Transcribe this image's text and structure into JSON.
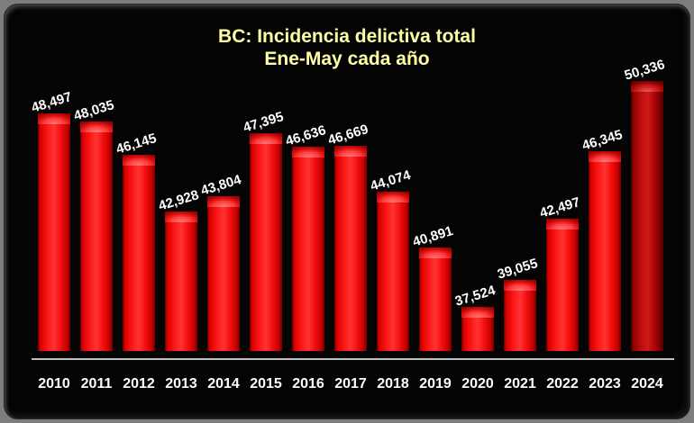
{
  "frame": {
    "outer_background": "#7d7d7d",
    "panel_background": "#040404"
  },
  "chart_data": {
    "type": "bar",
    "title": "BC: Incidencia delictiva total",
    "subtitle": "Ene-May cada año",
    "categories": [
      "2010",
      "2011",
      "2012",
      "2013",
      "2014",
      "2015",
      "2016",
      "2017",
      "2018",
      "2019",
      "2020",
      "2021",
      "2022",
      "2023",
      "2024"
    ],
    "values": [
      48497,
      48035,
      46145,
      42928,
      43804,
      47395,
      46636,
      46669,
      44074,
      40891,
      37524,
      39055,
      42497,
      46345,
      50336
    ],
    "value_labels": [
      "48,497",
      "48,035",
      "46,145",
      "42,928",
      "43,804",
      "47,395",
      "46,636",
      "46,669",
      "44,074",
      "40,891",
      "37,524",
      "39,055",
      "42,497",
      "46,345",
      "50,336"
    ],
    "xlabel": "",
    "ylabel": "",
    "ylim": [
      35000,
      50500
    ],
    "grid": false,
    "legend_position": "none",
    "y_axis_visible": false,
    "highlight_category": "2024",
    "value_label_rotation_deg": -17,
    "colors": {
      "bar": "#ee1010",
      "bar_highlight_2024": "#c00505",
      "title": "#ffffa6",
      "value_labels": "#ffffff",
      "category_labels": "#ffffff",
      "axis_line": "#c0c0c0",
      "background": "#000000"
    }
  }
}
